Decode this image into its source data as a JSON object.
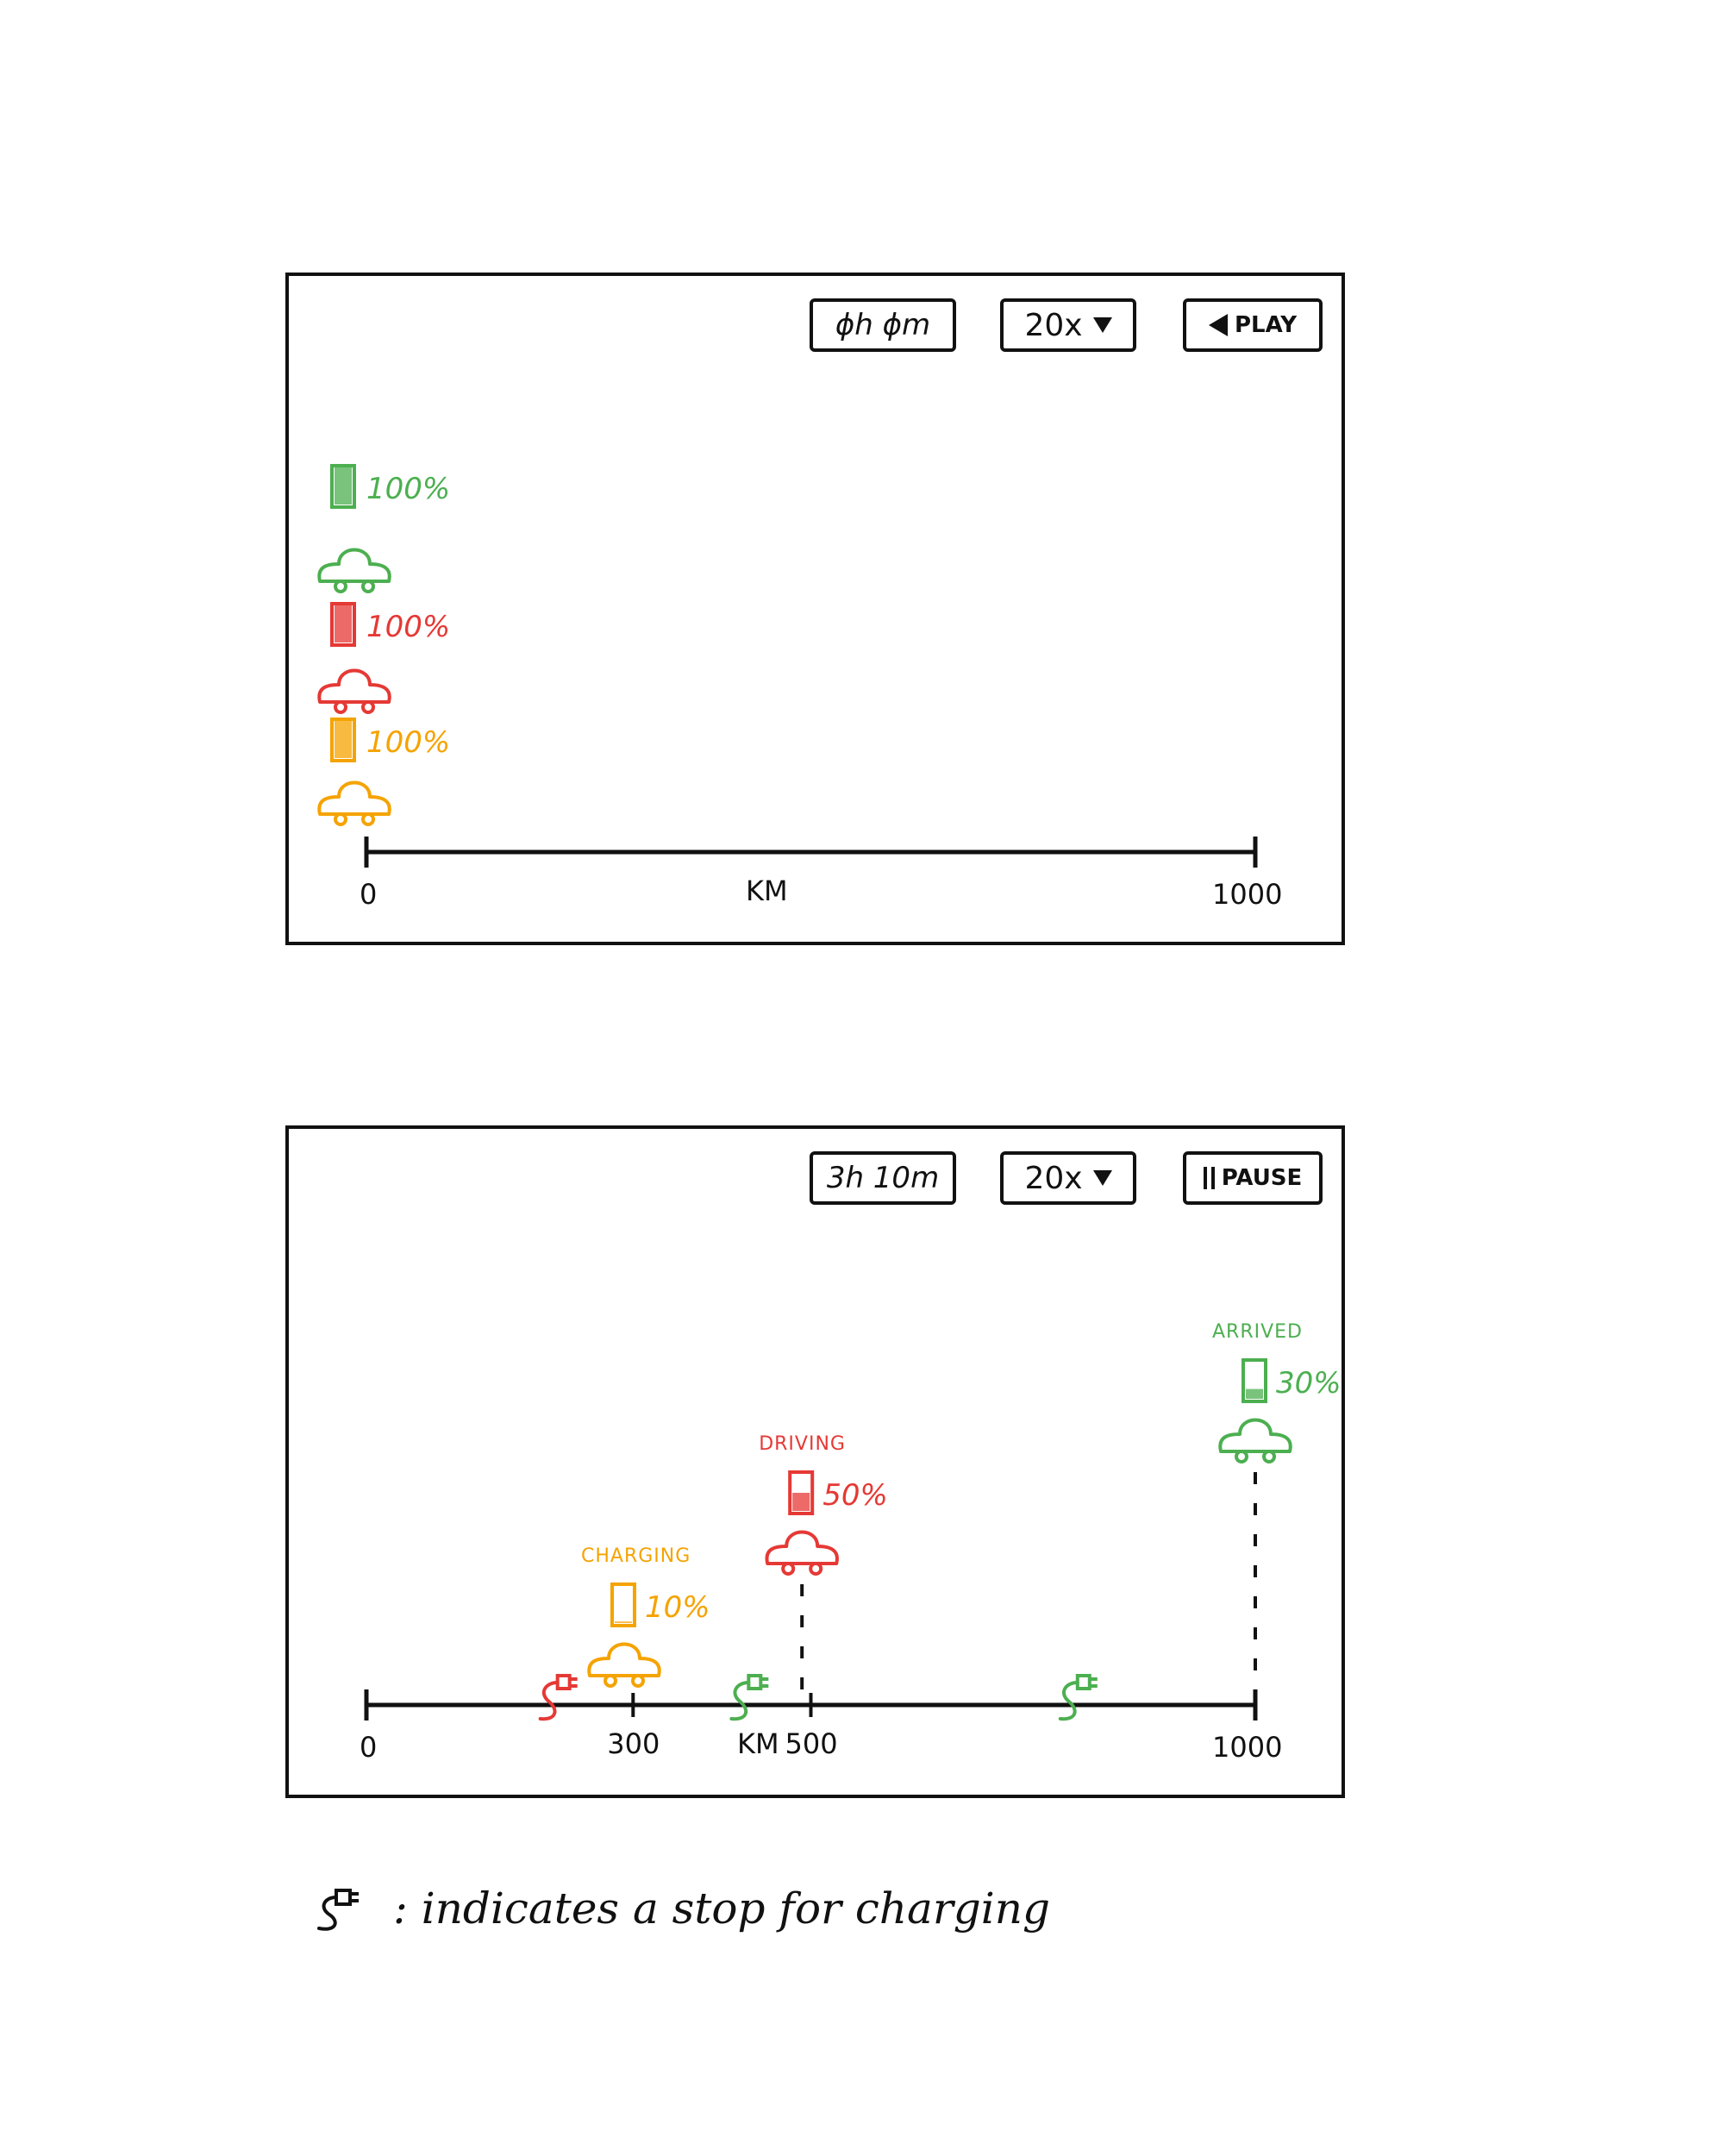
{
  "colors": {
    "green": "#4caf50",
    "red": "#e53935",
    "orange": "#f5a300",
    "ink": "#111111"
  },
  "legend": {
    "icon": "plug-icon",
    "text": ": indicates a stop for charging"
  },
  "panels": [
    {
      "time_label": "ϕh ϕm",
      "speed_label": "20x",
      "action_label": "PLAY",
      "action_icon": "play-icon",
      "axis": {
        "min_label": "0",
        "max_label": "1000",
        "unit_label": "KM",
        "min": 0,
        "max": 1000,
        "ticks": []
      },
      "stations": [],
      "cars": [
        {
          "id": "green",
          "color": "green",
          "km": 0,
          "battery_label": "100%",
          "battery_level": 1.0,
          "status": ""
        },
        {
          "id": "red",
          "color": "red",
          "km": 0,
          "battery_label": "100%",
          "battery_level": 1.0,
          "status": ""
        },
        {
          "id": "orange",
          "color": "orange",
          "km": 0,
          "battery_label": "100%",
          "battery_level": 1.0,
          "status": ""
        }
      ]
    },
    {
      "time_label": "3h 10m",
      "speed_label": "20x",
      "action_label": "PAUSE",
      "action_icon": "pause-icon",
      "axis": {
        "min_label": "0",
        "max_label": "1000",
        "unit_label": "KM",
        "min": 0,
        "max": 1000,
        "ticks": [
          {
            "km": 300,
            "label": "300"
          },
          {
            "km": 500,
            "label": "500"
          }
        ]
      },
      "stations": [
        {
          "km": 215,
          "color": "red"
        },
        {
          "km": 430,
          "color": "green"
        },
        {
          "km": 800,
          "color": "green"
        }
      ],
      "cars": [
        {
          "id": "orange",
          "color": "orange",
          "km": 290,
          "battery_label": "10%",
          "battery_level": 0.1,
          "status": "CHARGING"
        },
        {
          "id": "red",
          "color": "red",
          "km": 490,
          "battery_label": "50%",
          "battery_level": 0.5,
          "status": "DRIVING"
        },
        {
          "id": "green",
          "color": "green",
          "km": 1000,
          "battery_label": "30%",
          "battery_level": 0.3,
          "status": "ARRIVED"
        }
      ]
    }
  ]
}
